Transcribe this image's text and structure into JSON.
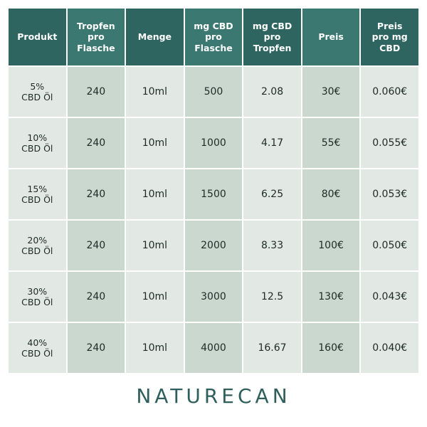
{
  "table": {
    "header": [
      "Produkt",
      "Tropfen\npro\nFlasche",
      "Menge",
      "mg CBD\npro\nFlasche",
      "mg CBD\npro\nTropfen",
      "Preis",
      "Preis\npro mg\nCBD"
    ],
    "rows": [
      [
        "5%\nCBD Öl",
        "240",
        "10ml",
        "500",
        "2.08",
        "30€",
        "0.060€"
      ],
      [
        "10%\nCBD Öl",
        "240",
        "10ml",
        "1000",
        "4.17",
        "55€",
        "0.055€"
      ],
      [
        "15%\nCBD Öl",
        "240",
        "10ml",
        "1500",
        "6.25",
        "80€",
        "0.053€"
      ],
      [
        "20%\nCBD Öl",
        "240",
        "10ml",
        "2000",
        "8.33",
        "100€",
        "0.050€"
      ],
      [
        "30%\nCBD Öl",
        "240",
        "10ml",
        "3000",
        "12.5",
        "130€",
        "0.043€"
      ],
      [
        "40%\nCBD Öl",
        "240",
        "10ml",
        "4000",
        "16.67",
        "160€",
        "0.040€"
      ]
    ]
  },
  "footer": {
    "brand": "NATURECAN"
  }
}
